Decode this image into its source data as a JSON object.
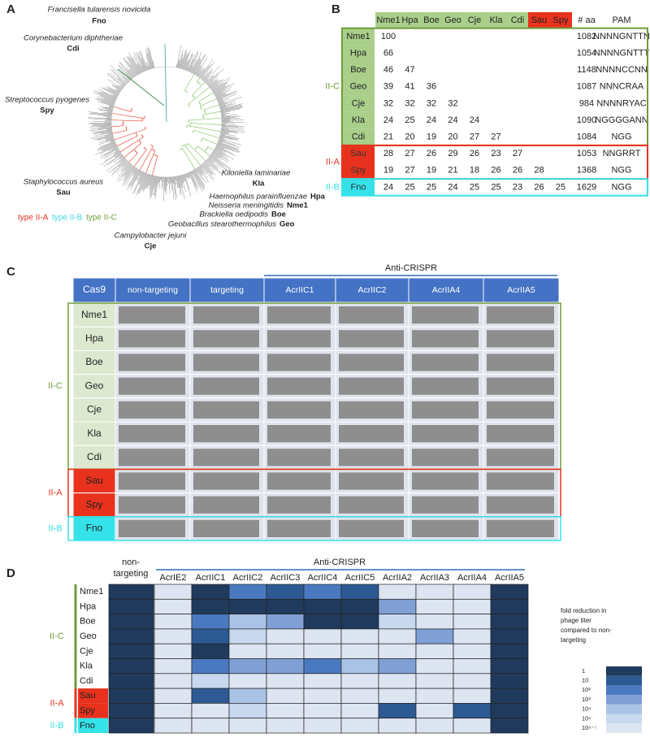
{
  "panel_a": {
    "letter": "A",
    "species": [
      {
        "name": "Francisella tularensis novicida",
        "abbr": "Fno"
      },
      {
        "name": "Corynebacterium diphtheriae",
        "abbr": "Cdi"
      },
      {
        "name": "Streptococcus pyogenes",
        "abbr": "Spy"
      },
      {
        "name": "Staphylococcus aureus",
        "abbr": "Sau"
      },
      {
        "name": "Kiloniella laminariae",
        "abbr": "Kla"
      },
      {
        "name": "Haemophilus parainfluenzae",
        "abbr": "Hpa"
      },
      {
        "name": "Neisseria meningitidis",
        "abbr": "Nme1"
      },
      {
        "name": "Brackiella oedipodis",
        "abbr": "Boe"
      },
      {
        "name": "Geobacillus stearothermophilus",
        "abbr": "Geo"
      },
      {
        "name": "Campylobacter jejuni",
        "abbr": "Cje"
      }
    ],
    "legend": [
      "type II-A",
      "type II-B",
      "type II-C"
    ]
  },
  "panel_b": {
    "letter": "B",
    "columns": [
      "Nme1",
      "Hpa",
      "Boe",
      "Geo",
      "Cje",
      "Kla",
      "Cdi",
      "Sau",
      "Spy",
      "# aa",
      "PAM"
    ],
    "groups": [
      "II-C",
      "II-A",
      "II-B"
    ],
    "rows": [
      {
        "name": "Nme1",
        "identity": [
          100
        ],
        "aa": 1082,
        "pam": "NNNNGNTTN"
      },
      {
        "name": "Hpa",
        "identity": [
          66
        ],
        "aa": 1054,
        "pam": "NNNNGNTTT"
      },
      {
        "name": "Boe",
        "identity": [
          46,
          47
        ],
        "aa": 1148,
        "pam": "NNNNCCNN"
      },
      {
        "name": "Geo",
        "identity": [
          39,
          41,
          36
        ],
        "aa": 1087,
        "pam": "NNNCRAA"
      },
      {
        "name": "Cje",
        "identity": [
          32,
          32,
          32,
          32
        ],
        "aa": 984,
        "pam": "NNNNRYAC"
      },
      {
        "name": "Kla",
        "identity": [
          24,
          25,
          24,
          24,
          24
        ],
        "aa": 1090,
        "pam": "NGGGGANN"
      },
      {
        "name": "Cdi",
        "identity": [
          21,
          20,
          19,
          20,
          27,
          27
        ],
        "aa": 1084,
        "pam": "NGG"
      },
      {
        "name": "Sau",
        "identity": [
          28,
          27,
          26,
          29,
          26,
          23,
          27
        ],
        "aa": 1053,
        "pam": "NNGRRT"
      },
      {
        "name": "Spy",
        "identity": [
          19,
          27,
          19,
          21,
          18,
          26,
          26,
          28
        ],
        "aa": 1368,
        "pam": "NGG"
      },
      {
        "name": "Fno",
        "identity": [
          24,
          25,
          25,
          24,
          25,
          25,
          23,
          26,
          25
        ],
        "aa": 1629,
        "pam": "NGG"
      }
    ]
  },
  "panel_c": {
    "letter": "C",
    "span_label": "Anti-CRISPR",
    "columns": [
      "Cas9",
      "non-targeting",
      "targeting",
      "AcrIIC1",
      "AcrIIC2",
      "AcrIIA4",
      "AcrIIA5"
    ],
    "groups": [
      "II-C",
      "II-A",
      "II-B"
    ],
    "rows": [
      "Nme1",
      "Hpa",
      "Boe",
      "Geo",
      "Cje",
      "Kla",
      "Cdi",
      "Sau",
      "Spy",
      "Fno"
    ]
  },
  "panel_d": {
    "letter": "D",
    "control_lines": [
      "non-",
      "targeting"
    ],
    "span_label": "Anti-CRISPR",
    "columns": [
      "AcrIE2",
      "AcrIIC1",
      "AcrIIC2",
      "AcrIIC3",
      "AcrIIC4",
      "AcrIIC5",
      "AcrIIA2",
      "AcrIIA3",
      "AcrIIA4",
      "AcrIIA5"
    ],
    "groups": [
      "II-C",
      "II-A",
      "II-B"
    ],
    "rows": [
      "Nme1",
      "Hpa",
      "Boe",
      "Geo",
      "Cje",
      "Kla",
      "Cdi",
      "Sau",
      "Spy",
      "Fno"
    ],
    "control_values": [
      1,
      1,
      1,
      1,
      1,
      1,
      1,
      1,
      1,
      1
    ],
    "values": [
      [
        1000000,
        1,
        100,
        10,
        100,
        10,
        1000000,
        1000000,
        1000000,
        1
      ],
      [
        1000000,
        1,
        1,
        1,
        1,
        1,
        1000,
        1000000,
        1000000,
        1
      ],
      [
        1000000,
        100,
        10000,
        1000,
        1,
        1,
        100000,
        1000000,
        1000000,
        1
      ],
      [
        1000000,
        10,
        100000,
        1000000,
        1000000,
        1000000,
        1000000,
        1000,
        1000000,
        1
      ],
      [
        1000000,
        1,
        1000000,
        1000000,
        1000000,
        1000000,
        1000000,
        1000000,
        1000000,
        1
      ],
      [
        1000000,
        100,
        1000,
        1000,
        100,
        10000,
        1000,
        1000000,
        1000000,
        1
      ],
      [
        1000000,
        100000,
        1000000,
        1000000,
        1000000,
        1000000,
        1000000,
        1000000,
        1000000,
        1
      ],
      [
        1000000,
        10,
        10000,
        1000000,
        1000000,
        1000000,
        1000000,
        1000000,
        1000000,
        1
      ],
      [
        1000000,
        1000000,
        100000,
        1000000,
        1000000,
        1000000,
        10,
        1000000,
        10,
        1
      ],
      [
        1000000,
        1000000,
        1000000,
        1000000,
        1000000,
        1000000,
        1000000,
        1000000,
        1000000,
        1
      ]
    ],
    "legend": {
      "title_lines": [
        "fold reduction in",
        "phage titer",
        "compared to non-",
        "targeting"
      ],
      "levels": [
        1,
        10,
        {
          "value": 100,
          "label": "10²"
        },
        {
          "value": 1000,
          "label": "10³"
        },
        {
          "value": 10000,
          "label": "10⁴"
        },
        {
          "value": 100000,
          "label": "10⁵"
        },
        {
          "value": 1000000,
          "label": "10⁶⁻⁷"
        }
      ],
      "colors": [
        "#1f3a5c",
        "#2d5a93",
        "#4a79c0",
        "#7f9fd5",
        "#a9c3e6",
        "#c7d8ef",
        "#dce5f1"
      ]
    }
  }
}
